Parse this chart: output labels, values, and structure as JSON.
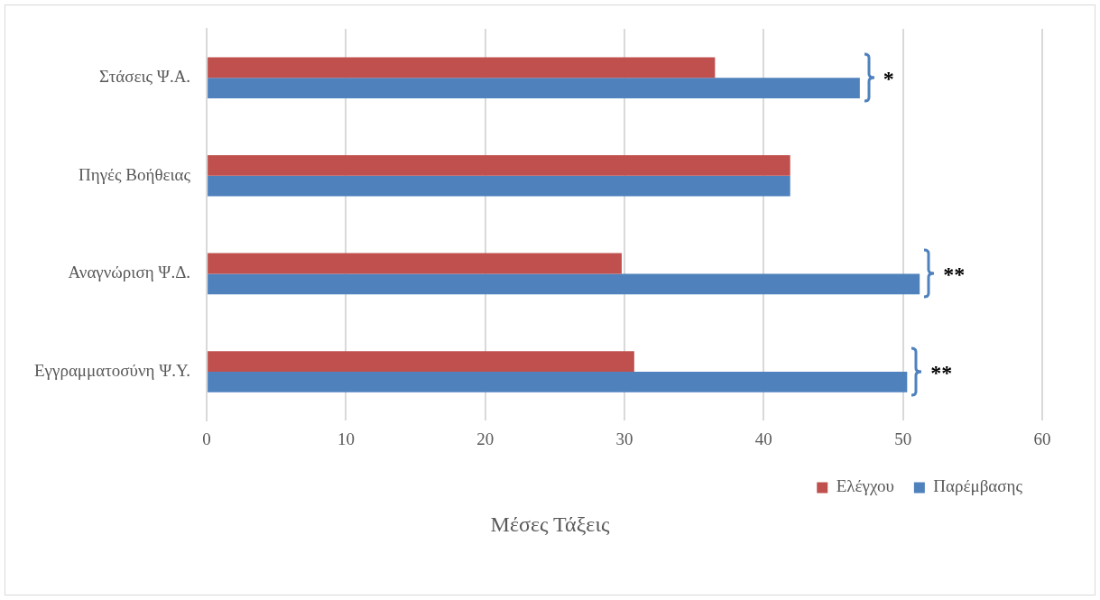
{
  "chart_data": {
    "type": "bar",
    "orientation": "horizontal",
    "xlabel": "Μέσες Τάξεις",
    "categories": [
      "Στάσεις Ψ.Α.",
      "Πηγές Βοήθειας",
      "Αναγνώριση Ψ.Δ.",
      "Εγγραμματοσύνη Ψ.Υ."
    ],
    "series": [
      {
        "name": "Ελέγχου",
        "color": "#c0504d",
        "values": [
          36.5,
          41.9,
          29.8,
          30.7
        ]
      },
      {
        "name": "Παρέμβασης",
        "color": "#4f81bd",
        "values": [
          46.9,
          41.9,
          51.2,
          50.3
        ]
      }
    ],
    "xlim": [
      0,
      60
    ],
    "xticks": [
      0,
      10,
      20,
      30,
      40,
      50,
      60
    ],
    "grid": "x",
    "legend": "bottom right",
    "annotations": [
      {
        "text": "*",
        "x": 46.9,
        "y": "Στάσεις Ψ.Α."
      },
      {
        "text": "**",
        "x": 51.2,
        "y": "Αναγνώριση Ψ.Δ."
      },
      {
        "text": "**",
        "x": 50.3,
        "y": "Εγγραμματοσύνη Ψ.Υ."
      }
    ]
  }
}
